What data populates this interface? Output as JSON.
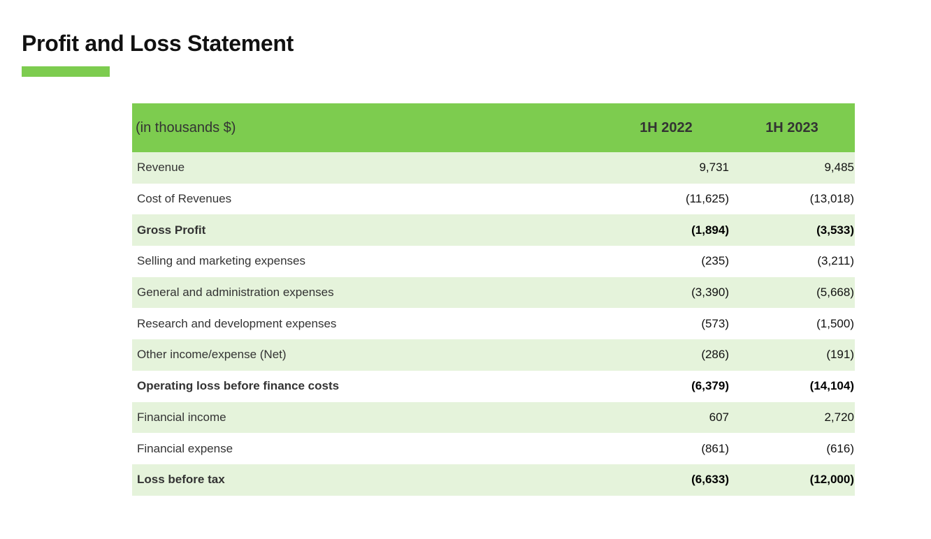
{
  "title": "Profit and Loss Statement",
  "colors": {
    "accent": "#7dcc4f",
    "row_stripe": "#e5f3db"
  },
  "table": {
    "headers": [
      "(in thousands $)",
      "1H 2022",
      "1H 2023"
    ],
    "rows": [
      {
        "label": "Revenue",
        "y2022": "9,731",
        "y2023": "9,485",
        "bold": false
      },
      {
        "label": "Cost of Revenues",
        "y2022": "(11,625)",
        "y2023": "(13,018)",
        "bold": false
      },
      {
        "label": "Gross Profit",
        "y2022": "(1,894)",
        "y2023": "(3,533)",
        "bold": true
      },
      {
        "label": "Selling and marketing expenses",
        "y2022": "(235)",
        "y2023": "(3,211)",
        "bold": false
      },
      {
        "label": "General and administration expenses",
        "y2022": "(3,390)",
        "y2023": "(5,668)",
        "bold": false
      },
      {
        "label": "Research and development expenses",
        "y2022": "(573)",
        "y2023": "(1,500)",
        "bold": false
      },
      {
        "label": "Other income/expense (Net)",
        "y2022": "(286)",
        "y2023": "(191)",
        "bold": false
      },
      {
        "label": "Operating loss before finance costs",
        "y2022": "(6,379)",
        "y2023": "(14,104)",
        "bold": true
      },
      {
        "label": "Financial income",
        "y2022": "607",
        "y2023": "2,720",
        "bold": false
      },
      {
        "label": "Financial expense",
        "y2022": "(861)",
        "y2023": "(616)",
        "bold": false
      },
      {
        "label": "Loss before tax",
        "y2022": "(6,633)",
        "y2023": "(12,000)",
        "bold": true
      }
    ]
  }
}
